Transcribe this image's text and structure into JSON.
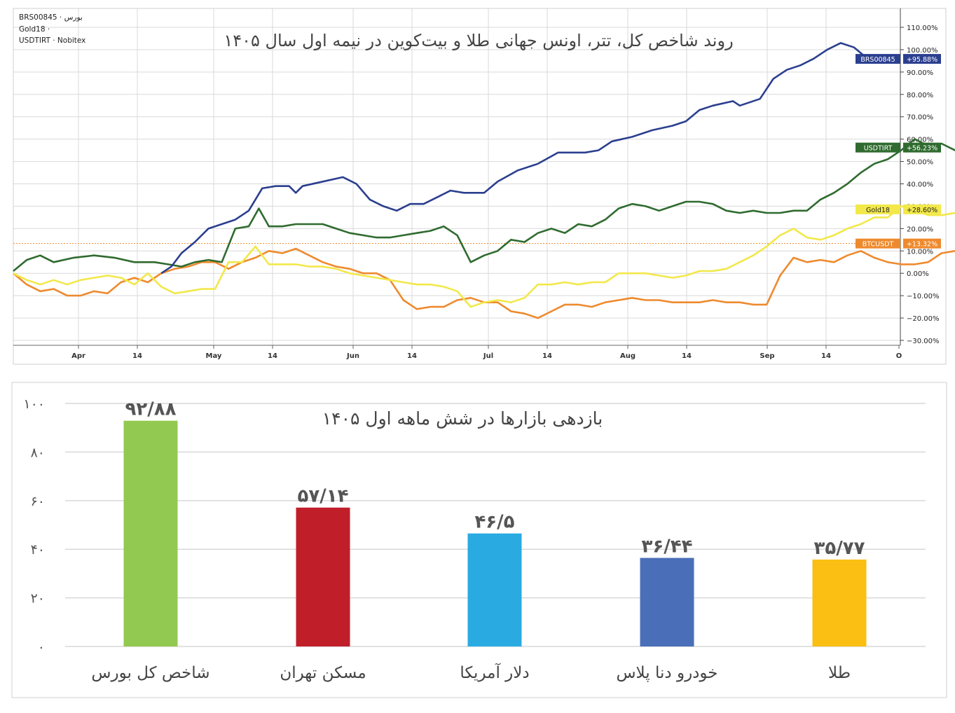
{
  "top_chart": {
    "title": "روند شاخص کل، تتر، اونس جهانی طلا و بیت‌کوین در نیمه اول سال ۱۴۰۵",
    "legend": [
      {
        "name": "BRS00845",
        "source": "بورس"
      },
      {
        "name": "Gold18",
        "source": ""
      },
      {
        "name": "USDTIRT",
        "source": "Nobitex"
      }
    ],
    "x_ticks": [
      "Apr",
      "14",
      "May",
      "14",
      "Jun",
      "14",
      "Jul",
      "14",
      "Aug",
      "14",
      "Sep",
      "14",
      "O"
    ],
    "y_ticks": [
      "110.00%",
      "100.00%",
      "90.00%",
      "80.00%",
      "70.00%",
      "60.00%",
      "50.00%",
      "40.00%",
      "30.00%",
      "20.00%",
      "10.00%",
      "0.00%",
      "−10.00%",
      "−20.00%",
      "−30.00%"
    ],
    "colors": {
      "brs": "#2b3f8f",
      "usdt": "#2f6b2f",
      "gold": "#f2e84a",
      "btc": "#ee8a2e",
      "grid": "#d9d9d9"
    }
  },
  "bottom_chart": {
    "title": "بازدهی بازارها در شش ماهه اول ۱۴۰۵",
    "y_ticks": [
      "۰",
      "۲۰",
      "۴۰",
      "۶۰",
      "۸۰",
      "۱۰۰"
    ]
  },
  "chart_data": [
    {
      "type": "line",
      "ylim": [
        -30,
        110
      ],
      "series": [
        {
          "name": "BRS00845",
          "end_label": "+95.88%",
          "color": "#2b3f8f",
          "points": [
            [
              0.44,
              0
            ],
            [
              0.47,
              3
            ],
            [
              0.5,
              9
            ],
            [
              0.54,
              14
            ],
            [
              0.58,
              20
            ],
            [
              0.62,
              22
            ],
            [
              0.66,
              24
            ],
            [
              0.7,
              28
            ],
            [
              0.74,
              38
            ],
            [
              0.78,
              39
            ],
            [
              0.82,
              39
            ],
            [
              0.84,
              36
            ],
            [
              0.86,
              39
            ],
            [
              0.92,
              41
            ],
            [
              0.98,
              43
            ],
            [
              1.02,
              40
            ],
            [
              1.06,
              33
            ],
            [
              1.1,
              30
            ],
            [
              1.14,
              28
            ],
            [
              1.18,
              31
            ],
            [
              1.22,
              31
            ],
            [
              1.26,
              34
            ],
            [
              1.3,
              37
            ],
            [
              1.34,
              36
            ],
            [
              1.4,
              36
            ],
            [
              1.44,
              41
            ],
            [
              1.5,
              46
            ],
            [
              1.56,
              49
            ],
            [
              1.62,
              54
            ],
            [
              1.7,
              54
            ],
            [
              1.74,
              55
            ],
            [
              1.78,
              59
            ],
            [
              1.84,
              61
            ],
            [
              1.9,
              64
            ],
            [
              1.96,
              66
            ],
            [
              2.0,
              68
            ],
            [
              2.04,
              73
            ],
            [
              2.08,
              75
            ],
            [
              2.14,
              77
            ],
            [
              2.16,
              75
            ],
            [
              2.22,
              78
            ],
            [
              2.26,
              87
            ],
            [
              2.3,
              91
            ],
            [
              2.34,
              93
            ],
            [
              2.38,
              96
            ],
            [
              2.42,
              100
            ],
            [
              2.46,
              103
            ],
            [
              2.5,
              101
            ],
            [
              2.54,
              96
            ],
            [
              2.57,
              95.88
            ]
          ]
        },
        {
          "name": "USDTIRT",
          "end_label": "+56.23%",
          "color": "#2f6b2f",
          "points": [
            [
              0,
              1
            ],
            [
              0.04,
              6
            ],
            [
              0.08,
              8
            ],
            [
              0.12,
              5
            ],
            [
              0.18,
              7
            ],
            [
              0.24,
              8
            ],
            [
              0.3,
              7
            ],
            [
              0.36,
              5
            ],
            [
              0.42,
              5
            ],
            [
              0.46,
              4
            ],
            [
              0.5,
              3
            ],
            [
              0.54,
              5
            ],
            [
              0.58,
              6
            ],
            [
              0.62,
              5
            ],
            [
              0.66,
              20
            ],
            [
              0.7,
              21
            ],
            [
              0.73,
              29
            ],
            [
              0.76,
              21
            ],
            [
              0.8,
              21
            ],
            [
              0.84,
              22
            ],
            [
              0.88,
              22
            ],
            [
              0.92,
              22
            ],
            [
              0.96,
              20
            ],
            [
              1.0,
              18
            ],
            [
              1.04,
              17
            ],
            [
              1.08,
              16
            ],
            [
              1.12,
              16
            ],
            [
              1.16,
              17
            ],
            [
              1.2,
              18
            ],
            [
              1.24,
              19
            ],
            [
              1.28,
              21
            ],
            [
              1.32,
              17
            ],
            [
              1.36,
              5
            ],
            [
              1.4,
              8
            ],
            [
              1.44,
              10
            ],
            [
              1.48,
              15
            ],
            [
              1.52,
              14
            ],
            [
              1.56,
              18
            ],
            [
              1.6,
              20
            ],
            [
              1.64,
              18
            ],
            [
              1.68,
              22
            ],
            [
              1.72,
              21
            ],
            [
              1.76,
              24
            ],
            [
              1.8,
              29
            ],
            [
              1.84,
              31
            ],
            [
              1.88,
              30
            ],
            [
              1.92,
              28
            ],
            [
              1.96,
              30
            ],
            [
              2.0,
              32
            ],
            [
              2.04,
              32
            ],
            [
              2.08,
              31
            ],
            [
              2.12,
              28
            ],
            [
              2.16,
              27
            ],
            [
              2.2,
              28
            ],
            [
              2.24,
              27
            ],
            [
              2.28,
              27
            ],
            [
              2.32,
              28
            ],
            [
              2.36,
              28
            ],
            [
              2.4,
              33
            ],
            [
              2.44,
              36
            ],
            [
              2.48,
              40
            ],
            [
              2.52,
              45
            ],
            [
              2.56,
              49
            ],
            [
              2.6,
              51
            ],
            [
              2.64,
              55
            ],
            [
              2.68,
              60
            ],
            [
              2.72,
              57
            ],
            [
              2.76,
              58
            ],
            [
              2.8,
              55
            ],
            [
              2.84,
              56.23
            ]
          ]
        },
        {
          "name": "Gold18",
          "end_label": "+28.60%",
          "color": "#f2e84a",
          "points": [
            [
              0,
              0
            ],
            [
              0.04,
              -3
            ],
            [
              0.08,
              -5
            ],
            [
              0.12,
              -3
            ],
            [
              0.16,
              -5
            ],
            [
              0.2,
              -3
            ],
            [
              0.24,
              -2
            ],
            [
              0.28,
              -1
            ],
            [
              0.32,
              -2
            ],
            [
              0.36,
              -5
            ],
            [
              0.4,
              0
            ],
            [
              0.44,
              -6
            ],
            [
              0.48,
              -9
            ],
            [
              0.52,
              -8
            ],
            [
              0.56,
              -7
            ],
            [
              0.6,
              -7
            ],
            [
              0.64,
              5
            ],
            [
              0.68,
              5
            ],
            [
              0.72,
              12
            ],
            [
              0.76,
              4
            ],
            [
              0.8,
              4
            ],
            [
              0.84,
              4
            ],
            [
              0.88,
              3
            ],
            [
              0.92,
              3
            ],
            [
              0.96,
              2
            ],
            [
              1.0,
              0
            ],
            [
              1.04,
              -1
            ],
            [
              1.08,
              -2
            ],
            [
              1.12,
              -3
            ],
            [
              1.16,
              -4
            ],
            [
              1.2,
              -5
            ],
            [
              1.24,
              -5
            ],
            [
              1.28,
              -6
            ],
            [
              1.32,
              -8
            ],
            [
              1.36,
              -15
            ],
            [
              1.4,
              -13
            ],
            [
              1.44,
              -12
            ],
            [
              1.48,
              -13
            ],
            [
              1.52,
              -11
            ],
            [
              1.56,
              -5
            ],
            [
              1.6,
              -5
            ],
            [
              1.64,
              -4
            ],
            [
              1.68,
              -5
            ],
            [
              1.72,
              -4
            ],
            [
              1.76,
              -4
            ],
            [
              1.8,
              0
            ],
            [
              1.84,
              0
            ],
            [
              1.88,
              0
            ],
            [
              1.92,
              -1
            ],
            [
              1.96,
              -2
            ],
            [
              2.0,
              -1
            ],
            [
              2.04,
              1
            ],
            [
              2.08,
              1
            ],
            [
              2.12,
              2
            ],
            [
              2.16,
              5
            ],
            [
              2.2,
              8
            ],
            [
              2.24,
              12
            ],
            [
              2.28,
              17
            ],
            [
              2.32,
              20
            ],
            [
              2.36,
              16
            ],
            [
              2.4,
              15
            ],
            [
              2.44,
              17
            ],
            [
              2.48,
              20
            ],
            [
              2.52,
              22
            ],
            [
              2.56,
              25
            ],
            [
              2.6,
              25
            ],
            [
              2.64,
              30
            ],
            [
              2.68,
              28
            ],
            [
              2.72,
              26
            ],
            [
              2.76,
              26
            ],
            [
              2.8,
              27
            ],
            [
              2.84,
              28.6
            ]
          ]
        },
        {
          "name": "BTCUSDT",
          "end_label": "+13.32%",
          "color": "#ee8a2e",
          "points": [
            [
              0,
              0
            ],
            [
              0.04,
              -5
            ],
            [
              0.08,
              -8
            ],
            [
              0.12,
              -7
            ],
            [
              0.16,
              -10
            ],
            [
              0.2,
              -10
            ],
            [
              0.24,
              -8
            ],
            [
              0.28,
              -9
            ],
            [
              0.32,
              -4
            ],
            [
              0.36,
              -2
            ],
            [
              0.4,
              -4
            ],
            [
              0.44,
              0
            ],
            [
              0.48,
              2
            ],
            [
              0.52,
              3
            ],
            [
              0.56,
              5
            ],
            [
              0.6,
              5
            ],
            [
              0.64,
              2
            ],
            [
              0.68,
              5
            ],
            [
              0.72,
              7
            ],
            [
              0.76,
              10
            ],
            [
              0.8,
              9
            ],
            [
              0.84,
              11
            ],
            [
              0.88,
              8
            ],
            [
              0.92,
              5
            ],
            [
              0.96,
              3
            ],
            [
              1.0,
              2
            ],
            [
              1.04,
              0
            ],
            [
              1.08,
              0
            ],
            [
              1.12,
              -3
            ],
            [
              1.16,
              -12
            ],
            [
              1.2,
              -16
            ],
            [
              1.24,
              -15
            ],
            [
              1.28,
              -15
            ],
            [
              1.32,
              -12
            ],
            [
              1.36,
              -11
            ],
            [
              1.4,
              -13
            ],
            [
              1.44,
              -13
            ],
            [
              1.48,
              -17
            ],
            [
              1.52,
              -18
            ],
            [
              1.56,
              -20
            ],
            [
              1.6,
              -17
            ],
            [
              1.64,
              -14
            ],
            [
              1.68,
              -14
            ],
            [
              1.72,
              -15
            ],
            [
              1.76,
              -13
            ],
            [
              1.8,
              -12
            ],
            [
              1.84,
              -11
            ],
            [
              1.88,
              -12
            ],
            [
              1.92,
              -12
            ],
            [
              1.96,
              -13
            ],
            [
              2.0,
              -13
            ],
            [
              2.04,
              -13
            ],
            [
              2.08,
              -12
            ],
            [
              2.12,
              -13
            ],
            [
              2.16,
              -13
            ],
            [
              2.2,
              -14
            ],
            [
              2.24,
              -14
            ],
            [
              2.28,
              -1
            ],
            [
              2.32,
              7
            ],
            [
              2.36,
              5
            ],
            [
              2.4,
              6
            ],
            [
              2.44,
              5
            ],
            [
              2.48,
              8
            ],
            [
              2.52,
              10
            ],
            [
              2.56,
              7
            ],
            [
              2.6,
              5
            ],
            [
              2.64,
              4
            ],
            [
              2.68,
              4
            ],
            [
              2.72,
              5
            ],
            [
              2.76,
              9
            ],
            [
              2.8,
              10
            ],
            [
              2.84,
              13.32
            ]
          ]
        }
      ]
    },
    {
      "type": "bar",
      "ylim": [
        0,
        100
      ],
      "categories": [
        "شاخص کل بورس",
        "مسکن تهران",
        "دلار آمریکا",
        "خودرو دنا پلاس",
        "طلا"
      ],
      "values": [
        92.88,
        57.14,
        46.5,
        36.44,
        35.77
      ],
      "labels": [
        "۹۲/۸۸",
        "۵۷/۱۴",
        "۴۶/۵",
        "۳۶/۴۴",
        "۳۵/۷۷"
      ],
      "colors": [
        "#92c950",
        "#c01f2a",
        "#29abe2",
        "#4a6fb8",
        "#fbbf13"
      ]
    }
  ]
}
